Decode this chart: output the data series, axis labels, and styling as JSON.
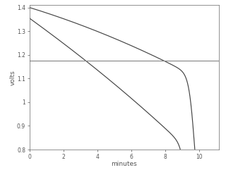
{
  "xlim": [
    0,
    11.2
  ],
  "ylim": [
    0.8,
    1.41
  ],
  "xlabel": "minutes",
  "ylabel": "volts",
  "cutoff_voltage": 1.175,
  "xticks": [
    0,
    2,
    4,
    6,
    8,
    10
  ],
  "yticks": [
    0.8,
    0.9,
    1.0,
    1.1,
    1.2,
    1.3,
    1.4
  ],
  "line_color": "#444444",
  "cutoff_color": "#888888",
  "bg_color": "#ffffff"
}
